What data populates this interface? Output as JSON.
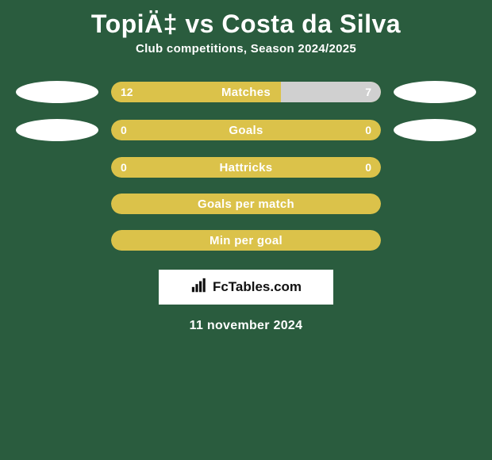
{
  "title": "TopiÄ‡ vs Costa da Silva",
  "subtitle": "Club competitions, Season 2024/2025",
  "rows": [
    {
      "label": "Matches",
      "left": "12",
      "right": "7",
      "leftPct": 63,
      "rightPct": 37,
      "leftColor": "#dbc24a",
      "rightColor": "#d0d0d0",
      "showEllipses": true
    },
    {
      "label": "Goals",
      "left": "0",
      "right": "0",
      "leftPct": 0,
      "rightPct": 0,
      "leftColor": "#dbc24a",
      "rightColor": "#d0d0d0",
      "emptyColor": "#dbc24a",
      "showEllipses": true
    },
    {
      "label": "Hattricks",
      "left": "0",
      "right": "0",
      "leftPct": 0,
      "rightPct": 0,
      "emptyColor": "#dbc24a",
      "showEllipses": false
    },
    {
      "label": "Goals per match",
      "left": "",
      "right": "",
      "leftPct": 0,
      "rightPct": 0,
      "emptyColor": "#dbc24a",
      "showEllipses": false
    },
    {
      "label": "Min per goal",
      "left": "",
      "right": "",
      "leftPct": 0,
      "rightPct": 0,
      "emptyColor": "#dbc24a",
      "showEllipses": false
    }
  ],
  "brand": "FcTables.com",
  "date": "11 november 2024",
  "colors": {
    "background": "#2a5c3e",
    "barDefault": "#dbc24a",
    "ellipse": "#ffffff"
  }
}
